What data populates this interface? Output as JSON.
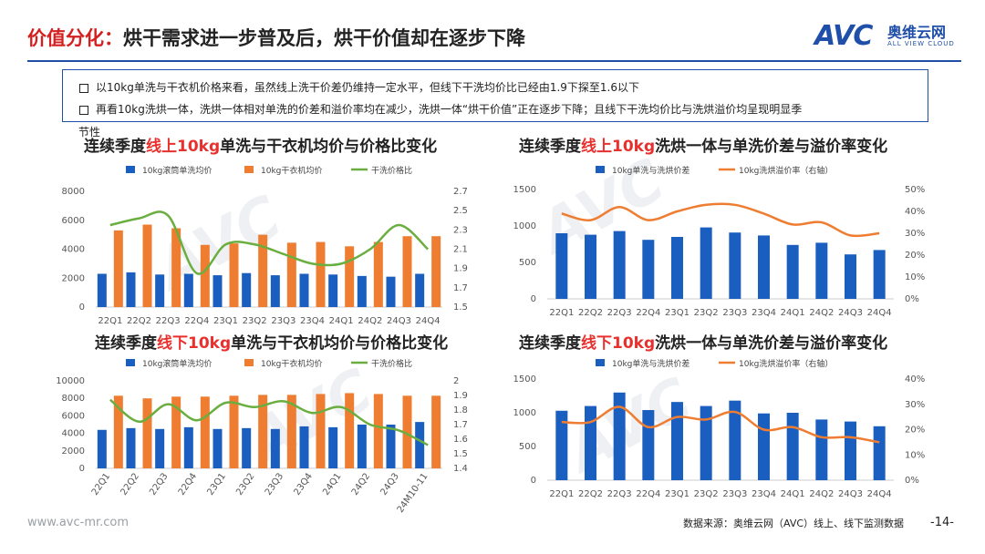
{
  "header": {
    "title_red": "价值分化：",
    "title_black": "烘干需求进一步普及后，烘干价值却在逐步下降",
    "logo_text": "AVC",
    "logo_cn": "奥维云网",
    "logo_en": "ALL VIEW CLOUD"
  },
  "notes": [
    "以10kg单洗与干衣机价格来看，虽然线上洗干价差仍维持一定水平，但线下干洗均价比已经由1.9下探至1.6以下",
    "再看10kg洗烘一体，洗烘一体相对单洗的价差和溢价率均在减少，洗烘一体“烘干价值”正在逐步下降；且线下干洗均价比与洗烘溢价均呈现明显季"
  ],
  "note_overflow": "节性",
  "watermark": "AVC",
  "footer": {
    "website": "www.avc-mr.com",
    "source": "数据来源：奥维云网（AVC）线上、线下监测数据",
    "page": "-14-"
  },
  "colors": {
    "blue": "#1a5fbf",
    "orange": "#ef7d31",
    "green": "#6aae3f"
  },
  "chart_data": [
    {
      "type": "bar",
      "title_pre": "连续季度",
      "title_red": "线上10kg",
      "title_post": "单洗与干衣机均价与价格比变化",
      "categories": [
        "22Q1",
        "22Q2",
        "22Q3",
        "22Q4",
        "23Q1",
        "23Q2",
        "23Q3",
        "23Q4",
        "24Q1",
        "24Q2",
        "24Q3",
        "24Q4"
      ],
      "series": [
        {
          "name": "10kg滚筒单洗均价",
          "kind": "bar",
          "values": [
            2300,
            2400,
            2250,
            2300,
            2200,
            2350,
            2200,
            2300,
            2250,
            2150,
            2100,
            2300
          ]
        },
        {
          "name": "10kg干衣机均价",
          "kind": "bar",
          "values": [
            5300,
            5700,
            5450,
            4300,
            4400,
            5000,
            4450,
            4500,
            4200,
            4500,
            4900,
            4900
          ]
        },
        {
          "name": "干洗价格比",
          "kind": "line",
          "axis": "right",
          "values": [
            2.35,
            2.42,
            2.45,
            1.85,
            2.15,
            2.15,
            2.05,
            1.95,
            1.95,
            2.1,
            2.35,
            2.1
          ]
        }
      ],
      "ylim": [
        0,
        8000
      ],
      "yticks": [
        0,
        2000,
        4000,
        6000,
        8000
      ],
      "y2lim": [
        1.5,
        2.7
      ],
      "y2ticks": [
        1.5,
        1.7,
        1.9,
        2.1,
        2.3,
        2.5,
        2.7
      ],
      "y2decimals": 1
    },
    {
      "type": "bar",
      "title_pre": "连续季度",
      "title_red": "线上10kg",
      "title_post": "洗烘一体与单洗价差与溢价率变化",
      "categories": [
        "22Q1",
        "22Q2",
        "22Q3",
        "22Q4",
        "23Q1",
        "23Q2",
        "23Q3",
        "23Q4",
        "24Q1",
        "24Q2",
        "24Q3",
        "24Q4"
      ],
      "series": [
        {
          "name": "10kg单洗与洗烘价差",
          "kind": "bar",
          "values": [
            900,
            880,
            930,
            810,
            850,
            980,
            910,
            870,
            740,
            770,
            610,
            670
          ]
        },
        {
          "name": "10kg洗烘溢价率（右轴）",
          "kind": "line",
          "axis": "right",
          "values": [
            0.39,
            0.36,
            0.42,
            0.36,
            0.4,
            0.43,
            0.43,
            0.39,
            0.34,
            0.35,
            0.29,
            0.3
          ]
        }
      ],
      "ylim": [
        0,
        1500
      ],
      "yticks": [
        0,
        500,
        1000,
        1500
      ],
      "y2lim": [
        0,
        0.5
      ],
      "y2ticks": [
        0,
        0.1,
        0.2,
        0.3,
        0.4,
        0.5
      ],
      "y2percent": true
    },
    {
      "type": "bar",
      "title_pre": "连续季度",
      "title_red": "线下10kg",
      "title_post": "单洗与干衣机均价与价格比变化",
      "categories": [
        "22Q1",
        "22Q2",
        "22Q3",
        "22Q4",
        "23Q1",
        "23Q2",
        "23Q3",
        "23Q4",
        "24Q1",
        "24Q2",
        "24Q3",
        "24M10-11"
      ],
      "rotate_labels": true,
      "series": [
        {
          "name": "10kg滚筒单洗均价",
          "kind": "bar",
          "values": [
            4400,
            4600,
            4500,
            4700,
            4500,
            4600,
            4500,
            4800,
            4700,
            5000,
            5000,
            5300
          ]
        },
        {
          "name": "10kg干衣机均价",
          "kind": "bar",
          "values": [
            8300,
            8000,
            8200,
            8200,
            8300,
            8400,
            8400,
            8500,
            8600,
            8500,
            8300,
            8300
          ]
        },
        {
          "name": "干洗价格比",
          "kind": "line",
          "axis": "right",
          "values": [
            1.87,
            1.72,
            1.84,
            1.73,
            1.85,
            1.82,
            1.86,
            1.78,
            1.82,
            1.7,
            1.66,
            1.56
          ]
        }
      ],
      "ylim": [
        0,
        10000
      ],
      "yticks": [
        0,
        2000,
        4000,
        6000,
        8000,
        10000
      ],
      "y2lim": [
        1.4,
        2.0
      ],
      "y2ticks": [
        1.4,
        1.5,
        1.6,
        1.7,
        1.8,
        1.9,
        2.0
      ],
      "y2decimals": 1,
      "y2trim": true
    },
    {
      "type": "bar",
      "title_pre": "连续季度",
      "title_red": "线下10kg",
      "title_post": "洗烘一体与单洗价差与溢价率变化",
      "categories": [
        "22Q1",
        "22Q2",
        "22Q3",
        "22Q4",
        "23Q1",
        "23Q2",
        "23Q3",
        "23Q4",
        "24Q1",
        "24Q2",
        "24Q3",
        "24Q4"
      ],
      "series": [
        {
          "name": "10kg单洗与洗烘价差",
          "kind": "bar",
          "values": [
            1030,
            1100,
            1300,
            1040,
            1160,
            1100,
            1180,
            990,
            1000,
            900,
            870,
            800
          ]
        },
        {
          "name": "10kg洗烘溢价率（右轴）",
          "kind": "line",
          "axis": "right",
          "values": [
            0.23,
            0.23,
            0.29,
            0.21,
            0.25,
            0.24,
            0.27,
            0.2,
            0.21,
            0.17,
            0.17,
            0.15
          ]
        }
      ],
      "ylim": [
        0,
        1500
      ],
      "yticks": [
        0,
        500,
        1000,
        1500
      ],
      "y2lim": [
        0,
        0.4
      ],
      "y2ticks": [
        0,
        0.1,
        0.2,
        0.3,
        0.4
      ],
      "y2percent": true
    }
  ]
}
